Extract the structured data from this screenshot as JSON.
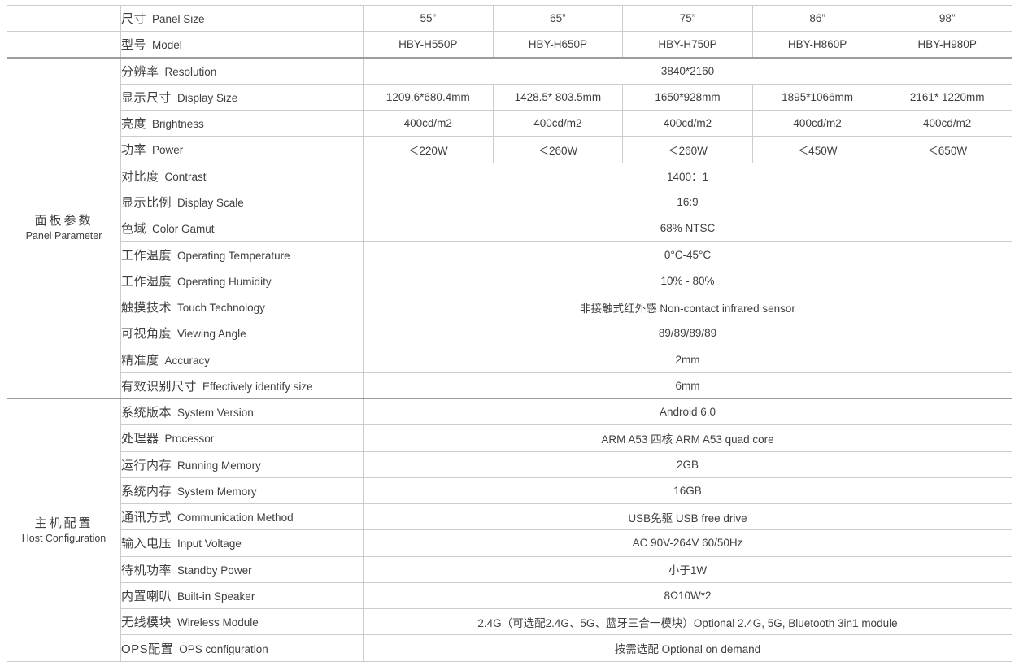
{
  "colors": {
    "text": "#3f3f3f",
    "border_light": "#cccccc",
    "border_section": "#9c9c9c",
    "background": "#ffffff"
  },
  "table": {
    "size_row": {
      "zh": "尺寸",
      "en": "Panel Size",
      "values": [
        "55”",
        "65”",
        "75”",
        "86”",
        "98”"
      ]
    },
    "model_row": {
      "zh": "型号",
      "en": "Model",
      "values": [
        "HBY-H550P",
        "HBY-H650P",
        "HBY-H750P",
        "HBY-H860P",
        "HBY-H980P"
      ]
    },
    "sections": [
      {
        "category_zh": "面板参数",
        "category_en": "Panel Parameter",
        "rows": [
          {
            "zh": "分辨率",
            "en": "Resolution",
            "value": "3840*2160"
          },
          {
            "zh": "显示尺寸",
            "en": "Display Size",
            "values": [
              "1209.6*680.4mm",
              "1428.5* 803.5mm",
              "1650*928mm",
              "1895*1066mm",
              "2161* 1220mm"
            ]
          },
          {
            "zh": "亮度",
            "en": "Brightness",
            "values": [
              "400cd/m2",
              "400cd/m2",
              "400cd/m2",
              "400cd/m2",
              "400cd/m2"
            ]
          },
          {
            "zh": "功率",
            "en": "Power",
            "values": [
              "＜220W",
              "＜260W",
              "＜260W",
              "＜450W",
              "＜650W"
            ]
          },
          {
            "zh": "对比度",
            "en": "Contrast",
            "value": "1400：1"
          },
          {
            "zh": "显示比例",
            "en": "Display Scale",
            "value": "16:9"
          },
          {
            "zh": "色域",
            "en": "Color Gamut",
            "value": "68% NTSC"
          },
          {
            "zh": "工作温度",
            "en": "Operating Temperature",
            "value": "0°C-45°C"
          },
          {
            "zh": "工作湿度",
            "en": "Operating Humidity",
            "value": "10% - 80%"
          },
          {
            "zh": "触摸技术",
            "en": "Touch Technology",
            "value": "非接触式红外感 Non-contact infrared sensor"
          },
          {
            "zh": "可视角度",
            "en": "Viewing Angle",
            "value": "89/89/89/89"
          },
          {
            "zh": "精准度",
            "en": "Accuracy",
            "value": "2mm"
          },
          {
            "zh": "有效识别尺寸",
            "en": "Effectively identify size",
            "value": "6mm"
          }
        ]
      },
      {
        "category_zh": "主机配置",
        "category_en": "Host Configuration",
        "rows": [
          {
            "zh": "系统版本",
            "en": "System Version",
            "value": "Android 6.0"
          },
          {
            "zh": "处理器",
            "en": "Processor",
            "value": "ARM A53 四核 ARM A53 quad core"
          },
          {
            "zh": "运行内存",
            "en": "Running Memory",
            "value": "2GB"
          },
          {
            "zh": "系统内存",
            "en": "System Memory",
            "value": "16GB"
          },
          {
            "zh": "通讯方式",
            "en": "Communication Method",
            "value": "USB免驱 USB free drive"
          },
          {
            "zh": "输入电压",
            "en": "Input Voltage",
            "value": "AC 90V-264V 60/50Hz"
          },
          {
            "zh": "待机功率",
            "en": "Standby Power",
            "value": "小于1W"
          },
          {
            "zh": "内置喇叭",
            "en": "Built-in Speaker",
            "value": "8Ω10W*2"
          },
          {
            "zh": "无线模块",
            "en": "Wireless Module",
            "value": "2.4G（可选配2.4G、5G、蓝牙三合一模块）Optional 2.4G, 5G, Bluetooth 3in1 module"
          },
          {
            "zh": "OPS配置",
            "en": "OPS configuration",
            "value": "按需选配 Optional on demand"
          }
        ]
      }
    ]
  }
}
